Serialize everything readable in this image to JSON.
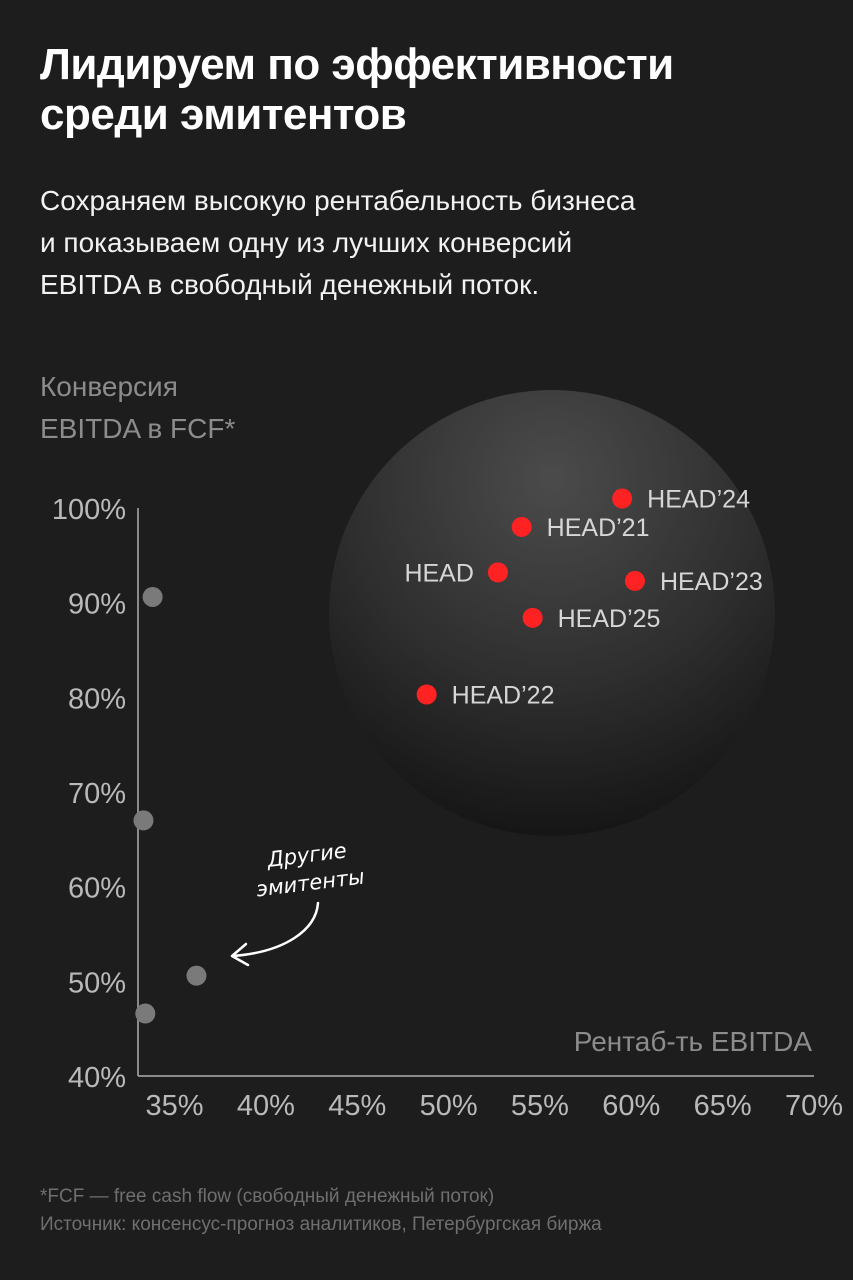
{
  "header": {
    "title_lines": [
      "Лидируем по эффективности",
      "среди эмитентов"
    ],
    "subtitle_lines": [
      "Сохраняем высокую рентабельность бизнеса",
      "и показываем одну из лучших конверсий",
      "EBITDA в свободный денежный поток."
    ]
  },
  "chart_data": {
    "type": "scatter",
    "ylabel_lines": [
      "Конверсия",
      "EBITDA в FCF*"
    ],
    "xlabel": "Рентаб-ть EBITDA",
    "x_ticks": [
      "35%",
      "40%",
      "45%",
      "50%",
      "55%",
      "60%",
      "65%",
      "70%"
    ],
    "y_ticks": [
      "100%",
      "90%",
      "80%",
      "70%",
      "60%",
      "50%",
      "40%"
    ],
    "xlim": [
      33,
      70
    ],
    "ylim": [
      40,
      100
    ],
    "grid": false,
    "series": [
      {
        "color": "#ff2222",
        "points": [
          {
            "label": "HEAD’24",
            "x": 59.5,
            "y": 101.0,
            "label_side": "right"
          },
          {
            "label": "HEAD’21",
            "x": 54.0,
            "y": 98.0,
            "label_side": "right"
          },
          {
            "label": "HEAD",
            "x": 52.7,
            "y": 93.2,
            "label_side": "left"
          },
          {
            "label": "HEAD’23",
            "x": 60.2,
            "y": 92.3,
            "label_side": "right"
          },
          {
            "label": "HEAD’25",
            "x": 54.6,
            "y": 88.4,
            "label_side": "right"
          },
          {
            "label": "HEAD’22",
            "x": 48.8,
            "y": 80.3,
            "label_side": "right"
          }
        ]
      },
      {
        "color": "#7a7a7a",
        "points": [
          {
            "x": 33.8,
            "y": 90.6
          },
          {
            "x": 33.3,
            "y": 67.0
          },
          {
            "x": 36.2,
            "y": 50.6
          },
          {
            "x": 33.4,
            "y": 46.6
          }
        ]
      }
    ],
    "annotation": {
      "text_lines": [
        "Другие",
        "эмитенты"
      ]
    },
    "colors": {
      "head": "#ff2222",
      "others": "#7a7a7a",
      "axis": "#8a8a8a",
      "tick_text": "#b9b9b9",
      "axis_label": "#8c8c8c"
    }
  },
  "footnotes": {
    "line1": "*FCF — free cash flow (свободный денежный поток)",
    "line2": "Источник: консенсус-прогноз аналитиков, Петербургская биржа"
  }
}
